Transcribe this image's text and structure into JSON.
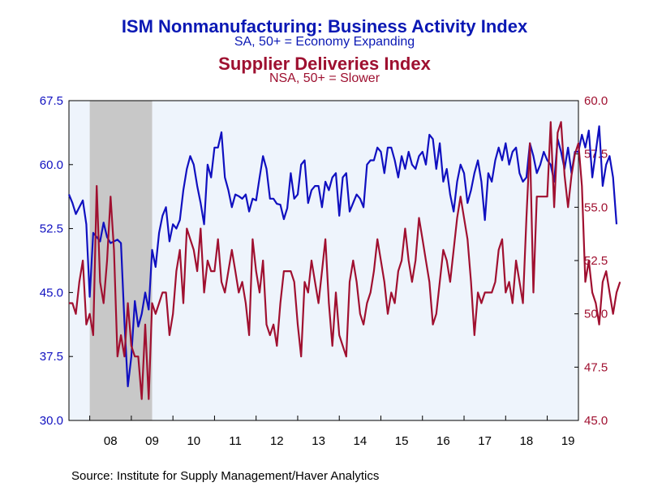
{
  "colors": {
    "series1": "#1010c0",
    "series2": "#a01030",
    "recession": "#c8c8c8",
    "plot_bg": "#eef4fc"
  },
  "chart_data": {
    "type": "line",
    "title": "ISM Nonmanufacturing: Business Activity Index",
    "subtitle": "SA, 50+ = Economy Expanding",
    "title2": "Supplier Deliveries Index",
    "subtitle2": "NSA, 50+ = Slower",
    "x_tick_labels": [
      "08",
      "09",
      "10",
      "11",
      "12",
      "13",
      "14",
      "15",
      "16",
      "17",
      "18",
      "19"
    ],
    "x_range": [
      2007.5,
      2019.75
    ],
    "left_axis": {
      "ylim": [
        30.0,
        67.5
      ],
      "ticks": [
        "30.0",
        "37.5",
        "45.0",
        "52.5",
        "60.0",
        "67.5"
      ]
    },
    "right_axis": {
      "ylim": [
        45.0,
        60.0
      ],
      "ticks": [
        "45.0",
        "47.5",
        "50.0",
        "52.5",
        "55.0",
        "57.5",
        "60.0"
      ]
    },
    "recession": [
      2008.0,
      2009.5
    ],
    "start": 2007.5,
    "step": 0.0833333,
    "series": [
      {
        "name": "ISM Nonmanufacturing: Business Activity Index",
        "axis": "left",
        "values": [
          56.5,
          55.5,
          54.2,
          55.0,
          55.8,
          53.0,
          44.5,
          52.0,
          51.5,
          51.0,
          53.2,
          51.5,
          50.8,
          51.0,
          51.2,
          50.8,
          41.5,
          34.0,
          37.5,
          44.0,
          41.0,
          42.5,
          45.0,
          43.0,
          50.0,
          48.0,
          52.0,
          54.0,
          55.0,
          51.0,
          53.0,
          52.5,
          53.5,
          57.0,
          59.5,
          61.0,
          60.0,
          57.5,
          55.5,
          53.0,
          60.0,
          58.5,
          62.0,
          62.0,
          63.8,
          58.5,
          57.0,
          55.0,
          56.5,
          56.3,
          56.0,
          56.5,
          54.5,
          56.0,
          55.8,
          58.5,
          61.0,
          59.5,
          56.0,
          56.0,
          55.4,
          55.3,
          53.6,
          54.9,
          59.0,
          56.0,
          56.5,
          60.0,
          60.5,
          55.5,
          57.0,
          57.5,
          57.5,
          55.0,
          58.0,
          57.0,
          58.5,
          59.0,
          54.0,
          58.5,
          59.0,
          54.5,
          55.5,
          56.5,
          56.0,
          55.0,
          60.0,
          60.5,
          60.5,
          62.0,
          61.5,
          59.0,
          62.0,
          62.0,
          60.5,
          58.5,
          61.0,
          59.5,
          61.5,
          60.0,
          59.5,
          61.0,
          61.5,
          60.0,
          63.5,
          63.0,
          59.5,
          62.5,
          58.0,
          59.5,
          56.5,
          54.5,
          58.0,
          60.0,
          59.0,
          55.5,
          57.0,
          59.0,
          60.5,
          58.0,
          53.5,
          59.0,
          58.0,
          60.5,
          62.0,
          60.5,
          62.5,
          60.0,
          61.5,
          62.0,
          59.0,
          58.0,
          58.5,
          62.5,
          61.0,
          59.0,
          60.0,
          61.5,
          60.5,
          60.0,
          58.0,
          63.0,
          61.5,
          59.5,
          62.0,
          59.0,
          61.5,
          61.5,
          63.5,
          62.0,
          64.0,
          58.5,
          61.5,
          64.5,
          57.5,
          60.0,
          61.0,
          58.5,
          53.0
        ]
      },
      {
        "name": "Supplier Deliveries Index",
        "axis": "right",
        "values": [
          50.5,
          50.5,
          50.0,
          51.5,
          52.5,
          49.5,
          50.0,
          49.0,
          56.0,
          51.5,
          50.5,
          52.5,
          55.5,
          53.0,
          48.0,
          49.0,
          48.0,
          50.5,
          48.5,
          48.0,
          48.0,
          46.0,
          49.5,
          46.0,
          50.5,
          50.0,
          50.5,
          51.0,
          51.0,
          49.0,
          50.0,
          52.0,
          53.0,
          50.5,
          54.0,
          53.5,
          53.0,
          52.0,
          54.0,
          51.0,
          52.5,
          52.0,
          52.0,
          53.5,
          51.5,
          51.0,
          52.0,
          53.0,
          52.0,
          51.0,
          51.5,
          50.5,
          49.0,
          53.5,
          52.0,
          51.0,
          52.5,
          49.5,
          49.0,
          49.5,
          48.5,
          50.5,
          52.0,
          52.0,
          52.0,
          51.5,
          49.5,
          48.0,
          51.5,
          51.0,
          52.5,
          51.5,
          50.5,
          52.0,
          53.5,
          50.5,
          48.5,
          51.0,
          49.0,
          48.5,
          48.0,
          51.5,
          52.5,
          51.5,
          50.0,
          49.5,
          50.5,
          51.0,
          52.0,
          53.5,
          52.5,
          51.5,
          50.0,
          51.0,
          50.5,
          52.0,
          52.5,
          54.0,
          52.5,
          51.5,
          52.5,
          54.5,
          53.5,
          52.5,
          51.5,
          49.5,
          50.0,
          51.5,
          53.0,
          52.5,
          51.5,
          53.0,
          54.5,
          55.5,
          54.5,
          53.5,
          51.5,
          49.0,
          51.0,
          50.5,
          51.0,
          51.0,
          51.0,
          51.5,
          53.0,
          53.5,
          51.0,
          51.5,
          50.5,
          52.5,
          51.5,
          50.5,
          54.5,
          58.0,
          51.0,
          55.5,
          55.5,
          55.5,
          55.5,
          59.0,
          55.0,
          58.5,
          59.0,
          56.5,
          55.0,
          56.5,
          57.5,
          58.0,
          56.0,
          51.5,
          52.5,
          51.0,
          50.5,
          49.5,
          51.5,
          52.0,
          51.0,
          50.0,
          51.0,
          51.5
        ]
      }
    ]
  },
  "source": "Source:  Institute for Supply Management/Haver Analytics"
}
